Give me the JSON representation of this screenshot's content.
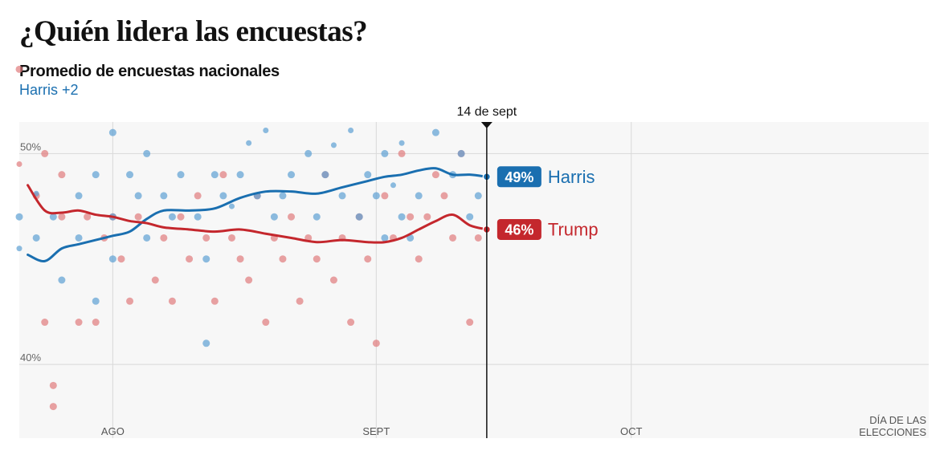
{
  "title": "¿Quién lidera las encuestas?",
  "subtitle": "Promedio de encuestas nacionales",
  "lead": "Harris +2",
  "colors": {
    "harris": "#1a6fb0",
    "trump": "#c4272d",
    "harris_dot": "#5d9fd3",
    "trump_dot": "#e07a7c",
    "background": "#f7f7f7",
    "grid": "#d9d9d9"
  },
  "chart_data": {
    "type": "scatter",
    "x_domain": [
      "2024-07-21",
      "2024-11-05"
    ],
    "ylim": [
      36.5,
      51.5
    ],
    "y_ticks": [
      {
        "value": 50,
        "label": "50%"
      },
      {
        "value": 40,
        "label": "40%"
      }
    ],
    "x_ticks": [
      {
        "date": "2024-08-01",
        "label": "AGO"
      },
      {
        "date": "2024-09-01",
        "label": "SEPT"
      },
      {
        "date": "2024-10-01",
        "label": "OCT"
      },
      {
        "date": "2024-11-05",
        "label": "DÍA DE LAS",
        "label2": "ELECCIONES"
      }
    ],
    "marker": {
      "date": "2024-09-14",
      "label": "14 de sept"
    },
    "series": [
      {
        "name": "Harris",
        "end_label": "49%",
        "color": "#1a6fb0",
        "dates": [
          "2024-07-22",
          "2024-07-24",
          "2024-07-26",
          "2024-07-28",
          "2024-07-30",
          "2024-08-01",
          "2024-08-03",
          "2024-08-05",
          "2024-08-07",
          "2024-08-10",
          "2024-08-13",
          "2024-08-16",
          "2024-08-19",
          "2024-08-22",
          "2024-08-25",
          "2024-08-28",
          "2024-08-31",
          "2024-09-02",
          "2024-09-04",
          "2024-09-06",
          "2024-09-08",
          "2024-09-10",
          "2024-09-12",
          "2024-09-14"
        ],
        "values": [
          45.2,
          44.9,
          45.5,
          45.7,
          45.9,
          46.1,
          46.3,
          46.9,
          47.3,
          47.3,
          47.4,
          47.9,
          48.2,
          48.2,
          48.1,
          48.4,
          48.7,
          48.9,
          49.0,
          49.2,
          49.3,
          49.0,
          49.0,
          48.9
        ]
      },
      {
        "name": "Trump",
        "end_label": "46%",
        "color": "#c4272d",
        "dates": [
          "2024-07-22",
          "2024-07-24",
          "2024-07-26",
          "2024-07-28",
          "2024-07-30",
          "2024-08-01",
          "2024-08-03",
          "2024-08-05",
          "2024-08-07",
          "2024-08-10",
          "2024-08-13",
          "2024-08-16",
          "2024-08-19",
          "2024-08-22",
          "2024-08-25",
          "2024-08-28",
          "2024-08-31",
          "2024-09-02",
          "2024-09-04",
          "2024-09-06",
          "2024-09-08",
          "2024-09-10",
          "2024-09-12",
          "2024-09-14"
        ],
        "values": [
          48.5,
          47.3,
          47.2,
          47.3,
          47.1,
          47.0,
          46.8,
          46.7,
          46.5,
          46.4,
          46.3,
          46.4,
          46.2,
          46.0,
          45.8,
          45.9,
          45.8,
          45.8,
          46.0,
          46.4,
          46.8,
          47.1,
          46.6,
          46.4
        ]
      }
    ],
    "polls": {
      "harris": [
        [
          "2024-07-21",
          47
        ],
        [
          "2024-07-21",
          45.5
        ],
        [
          "2024-07-23",
          48.1
        ],
        [
          "2024-07-23",
          46
        ],
        [
          "2024-07-25",
          47
        ],
        [
          "2024-07-26",
          44
        ],
        [
          "2024-07-28",
          48
        ],
        [
          "2024-07-28",
          46
        ],
        [
          "2024-07-30",
          43
        ],
        [
          "2024-07-30",
          49
        ],
        [
          "2024-08-01",
          47
        ],
        [
          "2024-08-01",
          51
        ],
        [
          "2024-08-01",
          45
        ],
        [
          "2024-08-03",
          49
        ],
        [
          "2024-08-04",
          48
        ],
        [
          "2024-08-05",
          46
        ],
        [
          "2024-08-05",
          50
        ],
        [
          "2024-08-07",
          48
        ],
        [
          "2024-08-08",
          47
        ],
        [
          "2024-08-09",
          49
        ],
        [
          "2024-08-11",
          47
        ],
        [
          "2024-08-12",
          45
        ],
        [
          "2024-08-12",
          41
        ],
        [
          "2024-08-13",
          49
        ],
        [
          "2024-08-14",
          48
        ],
        [
          "2024-08-15",
          47.5
        ],
        [
          "2024-08-16",
          49
        ],
        [
          "2024-08-17",
          50.5
        ],
        [
          "2024-08-18",
          48
        ],
        [
          "2024-08-19",
          51.1
        ],
        [
          "2024-08-20",
          47
        ],
        [
          "2024-08-21",
          48
        ],
        [
          "2024-08-22",
          49
        ],
        [
          "2024-08-24",
          50
        ],
        [
          "2024-08-25",
          47
        ],
        [
          "2024-08-26",
          49
        ],
        [
          "2024-08-27",
          50.4
        ],
        [
          "2024-08-28",
          48
        ],
        [
          "2024-08-29",
          51.1
        ],
        [
          "2024-08-30",
          47
        ],
        [
          "2024-08-31",
          49
        ],
        [
          "2024-09-01",
          48
        ],
        [
          "2024-09-02",
          50
        ],
        [
          "2024-09-02",
          46
        ],
        [
          "2024-09-03",
          48.5
        ],
        [
          "2024-09-04",
          47
        ],
        [
          "2024-09-04",
          50.5
        ],
        [
          "2024-09-05",
          46
        ],
        [
          "2024-09-06",
          48
        ],
        [
          "2024-09-08",
          51
        ],
        [
          "2024-09-10",
          49
        ],
        [
          "2024-09-11",
          50
        ],
        [
          "2024-09-12",
          47
        ],
        [
          "2024-09-13",
          48
        ]
      ],
      "trump": [
        [
          "2024-07-21",
          54
        ],
        [
          "2024-07-21",
          49.5
        ],
        [
          "2024-07-23",
          48
        ],
        [
          "2024-07-24",
          50
        ],
        [
          "2024-07-24",
          42
        ],
        [
          "2024-07-25",
          39
        ],
        [
          "2024-07-25",
          38
        ],
        [
          "2024-07-26",
          49
        ],
        [
          "2024-07-26",
          47
        ],
        [
          "2024-07-28",
          42
        ],
        [
          "2024-07-29",
          47
        ],
        [
          "2024-07-30",
          42
        ],
        [
          "2024-07-31",
          46
        ],
        [
          "2024-08-01",
          47
        ],
        [
          "2024-08-02",
          45
        ],
        [
          "2024-08-03",
          43
        ],
        [
          "2024-08-04",
          47
        ],
        [
          "2024-08-06",
          44
        ],
        [
          "2024-08-07",
          46
        ],
        [
          "2024-08-08",
          43
        ],
        [
          "2024-08-09",
          47
        ],
        [
          "2024-08-10",
          45
        ],
        [
          "2024-08-11",
          48
        ],
        [
          "2024-08-12",
          46
        ],
        [
          "2024-08-13",
          43
        ],
        [
          "2024-08-14",
          49
        ],
        [
          "2024-08-15",
          46
        ],
        [
          "2024-08-16",
          45
        ],
        [
          "2024-08-17",
          44
        ],
        [
          "2024-08-18",
          48
        ],
        [
          "2024-08-19",
          42
        ],
        [
          "2024-08-20",
          46
        ],
        [
          "2024-08-21",
          45
        ],
        [
          "2024-08-22",
          47
        ],
        [
          "2024-08-23",
          43
        ],
        [
          "2024-08-24",
          46
        ],
        [
          "2024-08-25",
          45
        ],
        [
          "2024-08-26",
          49
        ],
        [
          "2024-08-27",
          44
        ],
        [
          "2024-08-28",
          46
        ],
        [
          "2024-08-29",
          42
        ],
        [
          "2024-08-30",
          47
        ],
        [
          "2024-08-31",
          45
        ],
        [
          "2024-09-01",
          41
        ],
        [
          "2024-09-02",
          48
        ],
        [
          "2024-09-03",
          46
        ],
        [
          "2024-09-04",
          50
        ],
        [
          "2024-09-05",
          47
        ],
        [
          "2024-09-06",
          45
        ],
        [
          "2024-09-07",
          47
        ],
        [
          "2024-09-08",
          49
        ],
        [
          "2024-09-09",
          48
        ],
        [
          "2024-09-10",
          46
        ],
        [
          "2024-09-11",
          50
        ],
        [
          "2024-09-12",
          42
        ],
        [
          "2024-09-13",
          46
        ]
      ]
    }
  }
}
